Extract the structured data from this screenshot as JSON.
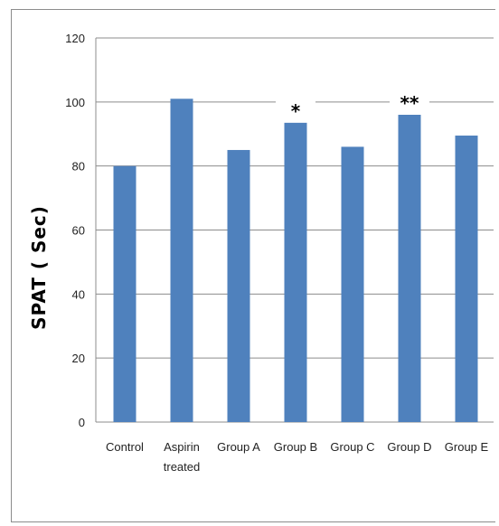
{
  "chart_data": {
    "type": "bar",
    "categories": [
      "Control",
      "Aspirin treated",
      "Group A",
      "Group B",
      "Group C",
      "Group D",
      "Group E"
    ],
    "category_lines": [
      [
        "Control"
      ],
      [
        "Aspirin",
        "treated"
      ],
      [
        "Group A"
      ],
      [
        "Group B"
      ],
      [
        "Group C"
      ],
      [
        "Group D"
      ],
      [
        "Group E"
      ]
    ],
    "values": [
      80,
      101,
      85,
      93.5,
      86,
      96,
      89.5
    ],
    "title": "",
    "xlabel": "",
    "ylabel": "SPAT ( Sec)",
    "ylim": [
      0,
      120
    ],
    "yticks": [
      0,
      20,
      40,
      60,
      80,
      100,
      120
    ],
    "grid": true,
    "bar_color": "#4f81bd",
    "grid_color": "#8c8c8c",
    "annotations": [
      {
        "category": "Group B",
        "text": "*"
      },
      {
        "category": "Group D",
        "text": "**"
      }
    ]
  }
}
